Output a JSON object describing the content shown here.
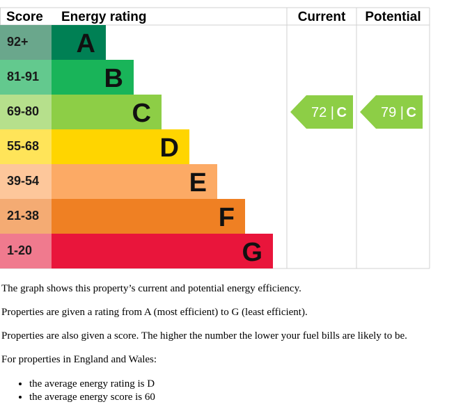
{
  "chart_data": {
    "type": "table",
    "headers": {
      "score": "Score",
      "rating": "Energy rating",
      "current": "Current",
      "potential": "Potential"
    },
    "bands": [
      {
        "score": "92+",
        "letter": "A",
        "color": "#008054",
        "score_bg": "#6aa78c"
      },
      {
        "score": "81-91",
        "letter": "B",
        "color": "#19b459",
        "score_bg": "#63c98e"
      },
      {
        "score": "69-80",
        "letter": "C",
        "color": "#8dce46",
        "score_bg": "#b6e08c"
      },
      {
        "score": "55-68",
        "letter": "D",
        "color": "#ffd500",
        "score_bg": "#ffe459"
      },
      {
        "score": "39-54",
        "letter": "E",
        "color": "#fcaa65",
        "score_bg": "#fdc79b"
      },
      {
        "score": "21-38",
        "letter": "F",
        "color": "#ef8023",
        "score_bg": "#f4ab73"
      },
      {
        "score": "1-20",
        "letter": "G",
        "color": "#e9153b",
        "score_bg": "#f07a8e"
      }
    ],
    "current": {
      "score": 72,
      "score_text": "72 |",
      "letter": "C",
      "band_index": 2,
      "color": "#8dce46"
    },
    "potential": {
      "score": 79,
      "score_text": "79 |",
      "letter": "C",
      "band_index": 2,
      "color": "#8dce46"
    }
  },
  "description": {
    "line1": "The graph shows this property’s current and potential energy efficiency.",
    "line2": "Properties are given a rating from A (most efficient) to G (least efficient).",
    "line3": "Properties are also given a score. The higher the number the lower your fuel bills are likely to be.",
    "line4": "For properties in England and Wales:",
    "bullet1": "the average energy rating is D",
    "bullet2": "the average energy score is 60"
  }
}
